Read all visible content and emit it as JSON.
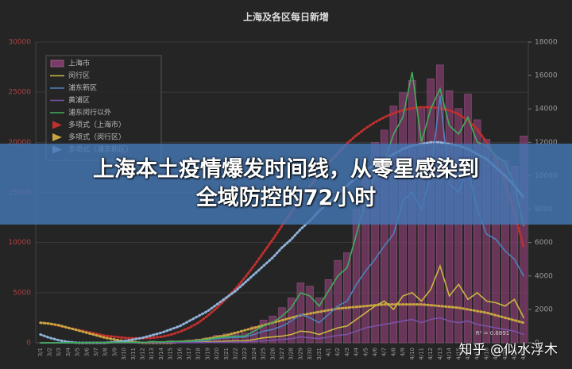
{
  "chart_data": {
    "type": "bar",
    "title": "上海及各区每日新增",
    "categories": [
      "3/1",
      "3/2",
      "3/3",
      "3/4",
      "3/5",
      "3/6",
      "3/7",
      "3/8",
      "3/9",
      "3/10",
      "3/11",
      "3/12",
      "3/13",
      "3/14",
      "3/15",
      "3/16",
      "3/17",
      "3/18",
      "3/19",
      "3/20",
      "3/21",
      "3/22",
      "3/23",
      "3/24",
      "3/25",
      "3/26",
      "3/27",
      "3/28",
      "3/29",
      "3/30",
      "3/31",
      "4/1",
      "4/2",
      "4/3",
      "4/4",
      "4/5",
      "4/6",
      "4/7",
      "4/8",
      "4/9",
      "4/10",
      "4/11",
      "4/12",
      "4/13",
      "4/14",
      "4/15",
      "4/16",
      "4/17",
      "4/18",
      "4/19",
      "4/20",
      "4/21",
      "4/22"
    ],
    "series": [
      {
        "name": "上海市",
        "style": "bar",
        "color": "#7b3b68",
        "values": [
          2,
          8,
          16,
          19,
          28,
          45,
          62,
          54,
          80,
          75,
          83,
          65,
          169,
          139,
          207,
          203,
          260,
          374,
          492,
          758,
          896,
          981,
          983,
          1609,
          2269,
          2678,
          3500,
          4477,
          5982,
          5653,
          4502,
          6311,
          8226,
          8982,
          13354,
          17077,
          19982,
          21222,
          23624,
          24944,
          26173,
          23342,
          26330,
          27719,
          25146,
          23370,
          24820,
          22248,
          20298,
          18415,
          18213,
          17629,
          20634
        ]
      },
      {
        "name": "闵行区",
        "style": "line",
        "axis": "y2",
        "color": "#c9b640",
        "values": [
          0,
          1,
          2,
          2,
          3,
          5,
          8,
          6,
          10,
          8,
          10,
          8,
          20,
          15,
          25,
          25,
          30,
          40,
          60,
          80,
          100,
          120,
          120,
          200,
          300,
          350,
          400,
          500,
          700,
          650,
          500,
          700,
          900,
          1000,
          1400,
          1800,
          2200,
          2500,
          2000,
          2800,
          3000,
          2500,
          3200,
          4600,
          2800,
          3500,
          2600,
          3000,
          2500,
          2400,
          2200,
          2600,
          1500
        ]
      },
      {
        "name": "浦东新区",
        "style": "line",
        "axis": "y2",
        "color": "#4f81bd",
        "values": [
          0,
          2,
          3,
          5,
          8,
          10,
          15,
          20,
          25,
          20,
          30,
          20,
          50,
          50,
          60,
          70,
          80,
          110,
          150,
          250,
          300,
          320,
          350,
          500,
          700,
          800,
          1000,
          1300,
          1700,
          1500,
          1200,
          1700,
          2200,
          2500,
          3500,
          4300,
          5000,
          5800,
          6500,
          8500,
          9000,
          8000,
          10000,
          14800,
          9500,
          9000,
          10500,
          8000,
          6500,
          6200,
          5500,
          5000,
          4000
        ]
      },
      {
        "name": "黄浦区",
        "style": "line",
        "axis": "y2",
        "color": "#7a52a8",
        "values": [
          0,
          0,
          1,
          1,
          2,
          3,
          3,
          2,
          4,
          3,
          4,
          3,
          8,
          6,
          10,
          10,
          12,
          15,
          20,
          30,
          40,
          50,
          50,
          80,
          120,
          150,
          200,
          250,
          350,
          300,
          250,
          350,
          450,
          500,
          700,
          900,
          1000,
          1100,
          1200,
          1300,
          1400,
          1200,
          1400,
          1500,
          1300,
          1200,
          1300,
          1100,
          1000,
          900,
          800,
          700,
          500
        ]
      },
      {
        "name": "浦东闵行以外",
        "style": "line",
        "axis": "y2",
        "color": "#3fae5a",
        "values": [
          0,
          0,
          5,
          5,
          10,
          15,
          20,
          15,
          30,
          25,
          30,
          25,
          60,
          50,
          80,
          80,
          100,
          150,
          200,
          300,
          350,
          400,
          400,
          700,
          1000,
          1200,
          1600,
          2100,
          3000,
          2800,
          2200,
          3100,
          4000,
          4500,
          6500,
          8500,
          10000,
          10800,
          12500,
          13500,
          16200,
          12000,
          14000,
          15200,
          13000,
          12500,
          13500,
          12000,
          11800,
          11200,
          10800,
          9500,
          7000
        ]
      },
      {
        "name": "多项式（上海市）",
        "style": "dotted",
        "color": "#c0302e",
        "values": [
          2000,
          1900,
          1700,
          1500,
          1300,
          1100,
          900,
          700,
          600,
          500,
          450,
          450,
          500,
          600,
          800,
          1100,
          1500,
          2000,
          2700,
          3500,
          4400,
          5400,
          6500,
          7700,
          9000,
          10300,
          11700,
          13000,
          14300,
          15600,
          16800,
          17900,
          18900,
          19900,
          20700,
          21400,
          22000,
          22500,
          22900,
          23200,
          23400,
          23500,
          23500,
          23400,
          23200,
          22800,
          22200,
          21300,
          20000,
          18300,
          16000,
          13000,
          9500
        ]
      },
      {
        "name": "多项式（闵行区）",
        "style": "dotted",
        "axis": "y2",
        "color": "#c9a540",
        "values": [
          1200,
          1150,
          1050,
          900,
          750,
          600,
          450,
          300,
          200,
          100,
          50,
          0,
          0,
          0,
          0,
          50,
          100,
          150,
          250,
          350,
          450,
          600,
          750,
          900,
          1050,
          1200,
          1350,
          1500,
          1650,
          1750,
          1850,
          1950,
          2050,
          2100,
          2150,
          2200,
          2250,
          2300,
          2300,
          2300,
          2300,
          2300,
          2250,
          2200,
          2150,
          2100,
          2000,
          1900,
          1800,
          1650,
          1500,
          1350,
          1200
        ]
      },
      {
        "name": "多项式（浦东新区）",
        "style": "dotted",
        "axis": "y2",
        "color": "#8fb3d9",
        "values": [
          500,
          300,
          150,
          50,
          0,
          0,
          0,
          0,
          50,
          100,
          200,
          300,
          450,
          600,
          800,
          1000,
          1300,
          1600,
          1900,
          2300,
          2700,
          3100,
          3600,
          4100,
          4600,
          5100,
          5700,
          6200,
          6800,
          7300,
          7900,
          8400,
          8900,
          9400,
          9900,
          10300,
          10700,
          11000,
          11300,
          11600,
          11800,
          11900,
          12000,
          12000,
          11900,
          11800,
          11600,
          11300,
          11000,
          10500,
          10000,
          9400,
          8700
        ]
      }
    ],
    "ylim": [
      0,
      30000
    ],
    "yticks": [
      0,
      5000,
      10000,
      15000,
      20000,
      25000,
      30000
    ],
    "y2lim": [
      0,
      18000
    ],
    "y2ticks": [
      0,
      2000,
      4000,
      6000,
      8000,
      10000,
      12000,
      14000,
      16000,
      18000
    ],
    "legend": "upper-left",
    "annotation": "R² = 0.6891"
  },
  "overlay": {
    "headline": [
      "上海本土疫情爆发时间线，从零星感染到",
      "全域防控的72小时"
    ],
    "watermark": "知乎 @似水浮木"
  }
}
